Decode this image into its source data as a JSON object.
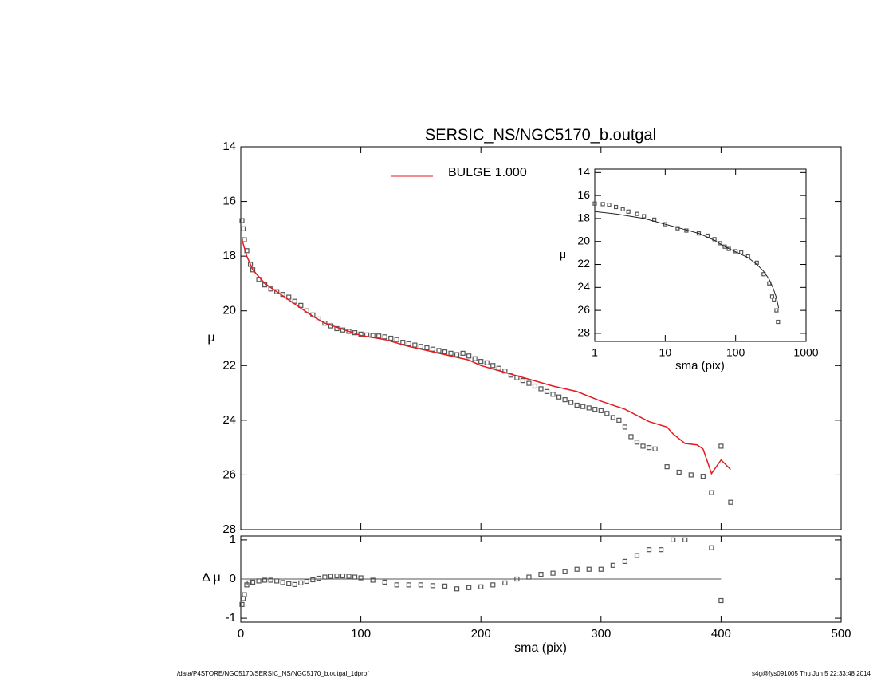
{
  "chart_data": [
    {
      "type": "scatter",
      "title": "SERSIC_NS/NGC5170_b.outgal",
      "y_label": "μ",
      "y_inverted": true,
      "xlim": [
        0,
        500
      ],
      "ylim": [
        14,
        28
      ],
      "yticks": [
        14,
        16,
        18,
        20,
        22,
        24,
        26,
        28
      ],
      "legend": "top-center",
      "series": [
        {
          "style": "markers",
          "color": "#555555",
          "x": [
            1,
            2,
            3,
            5,
            8,
            10,
            15,
            20,
            25,
            30,
            35,
            40,
            45,
            50,
            55,
            60,
            65,
            70,
            75,
            80,
            85,
            90,
            95,
            100,
            105,
            110,
            115,
            120,
            125,
            130,
            135,
            140,
            145,
            150,
            155,
            160,
            165,
            170,
            175,
            180,
            185,
            190,
            195,
            200,
            205,
            210,
            215,
            220,
            225,
            230,
            235,
            240,
            245,
            250,
            255,
            260,
            265,
            270,
            275,
            280,
            285,
            290,
            295,
            300,
            305,
            310,
            315,
            320,
            325,
            330,
            335,
            340,
            345,
            355,
            365,
            375,
            385,
            392,
            400,
            408
          ],
          "values": [
            16.7,
            17.0,
            17.4,
            17.8,
            18.3,
            18.5,
            18.85,
            19.05,
            19.2,
            19.3,
            19.4,
            19.5,
            19.65,
            19.8,
            20.0,
            20.15,
            20.3,
            20.45,
            20.55,
            20.65,
            20.7,
            20.75,
            20.8,
            20.85,
            20.88,
            20.9,
            20.92,
            20.95,
            21.0,
            21.05,
            21.15,
            21.2,
            21.25,
            21.3,
            21.35,
            21.4,
            21.45,
            21.5,
            21.55,
            21.6,
            21.55,
            21.65,
            21.75,
            21.85,
            21.9,
            22.0,
            22.1,
            22.2,
            22.35,
            22.45,
            22.55,
            22.65,
            22.75,
            22.85,
            22.95,
            23.05,
            23.15,
            23.25,
            23.35,
            23.45,
            23.5,
            23.55,
            23.6,
            23.65,
            23.75,
            23.9,
            24.0,
            24.25,
            24.6,
            24.8,
            24.95,
            25.0,
            25.05,
            25.7,
            25.9,
            26.0,
            26.05,
            26.65,
            24.95,
            27.0
          ]
        },
        {
          "name": "BULGE  1.000",
          "style": "line",
          "color": "#e8191e",
          "x": [
            1,
            5,
            10,
            20,
            30,
            40,
            50,
            60,
            70,
            80,
            90,
            100,
            120,
            140,
            160,
            180,
            190,
            200,
            220,
            240,
            260,
            280,
            300,
            320,
            340,
            355,
            360,
            370,
            380,
            385,
            392,
            400,
            408
          ],
          "values": [
            17.4,
            18.0,
            18.5,
            19.0,
            19.3,
            19.6,
            19.9,
            20.2,
            20.45,
            20.6,
            20.75,
            20.9,
            21.05,
            21.3,
            21.5,
            21.7,
            21.8,
            22.0,
            22.25,
            22.5,
            22.75,
            22.95,
            23.3,
            23.6,
            24.05,
            24.25,
            24.5,
            24.85,
            24.9,
            25.05,
            25.95,
            25.45,
            25.8
          ]
        }
      ]
    },
    {
      "type": "scatter",
      "x_label": "sma (pix)",
      "y_label": "μ",
      "y_inverted": true,
      "x_log": true,
      "xlim": [
        1,
        1000
      ],
      "xticks": [
        1,
        10,
        100,
        1000
      ],
      "ylim": [
        13.7,
        28.7
      ],
      "yticks": [
        14,
        16,
        18,
        20,
        22,
        24,
        26,
        28
      ],
      "series": [
        {
          "style": "markers",
          "color": "#555555",
          "x": [
            1,
            1.3,
            1.6,
            2,
            2.5,
            3,
            4,
            5,
            7,
            10,
            15,
            20,
            30,
            40,
            50,
            60,
            70,
            80,
            100,
            120,
            150,
            200,
            250,
            300,
            330,
            350,
            380,
            400
          ],
          "values": [
            16.7,
            16.75,
            16.8,
            17.0,
            17.2,
            17.4,
            17.6,
            17.8,
            18.1,
            18.5,
            18.85,
            19.05,
            19.3,
            19.5,
            19.8,
            20.15,
            20.45,
            20.65,
            20.85,
            20.95,
            21.3,
            21.85,
            22.85,
            23.65,
            24.8,
            25.05,
            26.0,
            27.0
          ]
        },
        {
          "style": "line",
          "color": "#222222",
          "x": [
            1,
            2,
            5,
            10,
            20,
            30,
            50,
            70,
            100,
            150,
            200,
            250,
            300,
            340,
            380,
            408
          ],
          "values": [
            17.4,
            17.6,
            18.0,
            18.5,
            19.0,
            19.3,
            19.9,
            20.45,
            20.9,
            21.4,
            22.0,
            22.6,
            23.3,
            24.05,
            24.9,
            25.8
          ]
        }
      ]
    },
    {
      "type": "scatter",
      "x_label": "sma (pix)",
      "y_label": "Δ μ",
      "xlim": [
        0,
        500
      ],
      "xticks": [
        0,
        100,
        200,
        300,
        400,
        500
      ],
      "ylim": [
        -1.1,
        1.1
      ],
      "yticks": [
        -1,
        0,
        1
      ],
      "series": [
        {
          "style": "markers",
          "color": "#555555",
          "x": [
            1,
            2,
            3,
            5,
            7,
            10,
            15,
            20,
            25,
            30,
            35,
            40,
            45,
            50,
            55,
            60,
            65,
            70,
            75,
            80,
            85,
            90,
            95,
            100,
            110,
            120,
            130,
            140,
            150,
            160,
            170,
            180,
            190,
            200,
            210,
            220,
            230,
            240,
            250,
            260,
            270,
            280,
            290,
            300,
            310,
            320,
            330,
            340,
            350,
            360,
            370,
            392,
            400
          ],
          "values": [
            -0.65,
            -0.5,
            -0.4,
            -0.15,
            -0.1,
            -0.08,
            -0.05,
            -0.03,
            -0.03,
            -0.05,
            -0.09,
            -0.12,
            -0.14,
            -0.1,
            -0.06,
            -0.02,
            0.02,
            0.05,
            0.07,
            0.08,
            0.08,
            0.07,
            0.05,
            0.03,
            -0.03,
            -0.08,
            -0.15,
            -0.15,
            -0.15,
            -0.17,
            -0.18,
            -0.25,
            -0.22,
            -0.2,
            -0.15,
            -0.1,
            0.0,
            0.05,
            0.12,
            0.15,
            0.2,
            0.25,
            0.25,
            0.25,
            0.35,
            0.45,
            0.6,
            0.75,
            0.75,
            1.0,
            1.0,
            0.8,
            -0.55
          ]
        }
      ]
    }
  ],
  "footer": {
    "left": "/data/P4STORE/NGC5170/SERSIC_NS/NGC5170_b.outgal_1dprof",
    "right": "s4g@fys091005  Thu Jun  5 22:33:48 2014"
  }
}
